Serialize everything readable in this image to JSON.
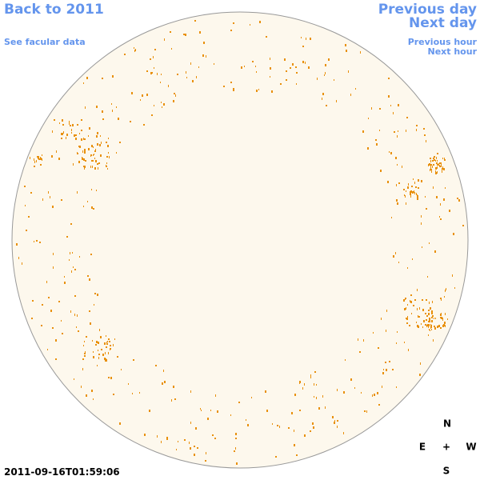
{
  "nav": {
    "back": "Back to 2011",
    "facular": "See facular data",
    "previous_day": "Previous day",
    "next_day": "Next day",
    "previous_hour": "Previous hour",
    "next_hour": "Next hour"
  },
  "compass": {
    "north": "N",
    "east": "E",
    "center": "+",
    "west": "W",
    "south": "S"
  },
  "timestamp": "2011-09-16T01:59:06"
}
